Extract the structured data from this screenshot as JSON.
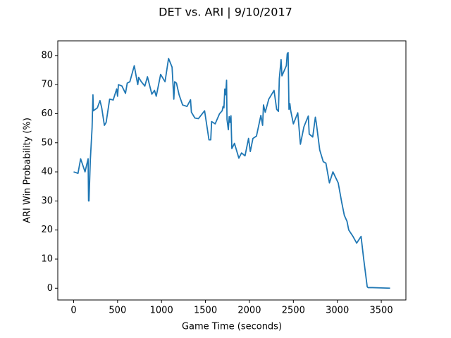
{
  "chart_data": {
    "type": "line",
    "title": "DET vs. ARI | 9/10/2017",
    "x_label": "Game Time (seconds)",
    "y_label": "ARI Win Probability (%)",
    "x": [
      0,
      50,
      80,
      130,
      165,
      170,
      175,
      190,
      210,
      220,
      225,
      270,
      300,
      320,
      350,
      370,
      410,
      450,
      490,
      500,
      510,
      550,
      590,
      610,
      640,
      690,
      720,
      730,
      740,
      770,
      810,
      840,
      890,
      920,
      940,
      990,
      1040,
      1080,
      1120,
      1140,
      1150,
      1170,
      1200,
      1240,
      1290,
      1330,
      1340,
      1380,
      1420,
      1490,
      1540,
      1560,
      1570,
      1610,
      1660,
      1690,
      1700,
      1710,
      1720,
      1730,
      1740,
      1745,
      1760,
      1770,
      1780,
      1790,
      1800,
      1830,
      1880,
      1910,
      1950,
      1990,
      2010,
      2040,
      2080,
      2130,
      2150,
      2160,
      2180,
      2220,
      2280,
      2310,
      2330,
      2340,
      2360,
      2370,
      2420,
      2430,
      2440,
      2450,
      2460,
      2470,
      2500,
      2550,
      2580,
      2620,
      2640,
      2670,
      2680,
      2720,
      2750,
      2760,
      2800,
      2840,
      2870,
      2910,
      2950,
      3010,
      3050,
      3080,
      3110,
      3130,
      3180,
      3220,
      3270,
      3300,
      3340,
      3350,
      3400,
      3500,
      3600
    ],
    "values": [
      40,
      39.5,
      44.5,
      40,
      44.5,
      30,
      30,
      44,
      55,
      66.5,
      61,
      62,
      64.5,
      62,
      56,
      57,
      65,
      64.7,
      68.5,
      66,
      70,
      69.5,
      67,
      70.5,
      71,
      76.5,
      71.5,
      70,
      72.5,
      71,
      69.5,
      72.7,
      66.7,
      68,
      66,
      73.5,
      71,
      79,
      76,
      65,
      71,
      70.5,
      66.5,
      63,
      62.5,
      64.8,
      60.5,
      58.5,
      58.3,
      61,
      51,
      51,
      57.3,
      56.5,
      60,
      61,
      62.5,
      62,
      68.5,
      66.5,
      71.5,
      58,
      54.5,
      59,
      57,
      59.3,
      48,
      49.8,
      44.7,
      46.5,
      45.5,
      51.5,
      47,
      51.5,
      52.3,
      59.4,
      56,
      63,
      60.5,
      65,
      68,
      61.5,
      60.8,
      72,
      78.6,
      73,
      76.5,
      80.6,
      81,
      61.5,
      63.5,
      61,
      56.5,
      60.3,
      49.5,
      55.5,
      57,
      59.2,
      53,
      52,
      58.8,
      57,
      47.5,
      43.5,
      43,
      36.2,
      40,
      36.2,
      29.5,
      25,
      23,
      20,
      17.7,
      15.5,
      17.8,
      10,
      0.5,
      0.2,
      0.2,
      0.1,
      0
    ],
    "color": "#1f77b4",
    "xlim": [
      -180,
      3780
    ],
    "xticks": [
      0,
      500,
      1000,
      1500,
      2000,
      2500,
      3000,
      3500
    ],
    "ylim": [
      -4.05,
      85.05
    ],
    "yticks": [
      0,
      10,
      20,
      30,
      40,
      50,
      60,
      70,
      80
    ]
  }
}
